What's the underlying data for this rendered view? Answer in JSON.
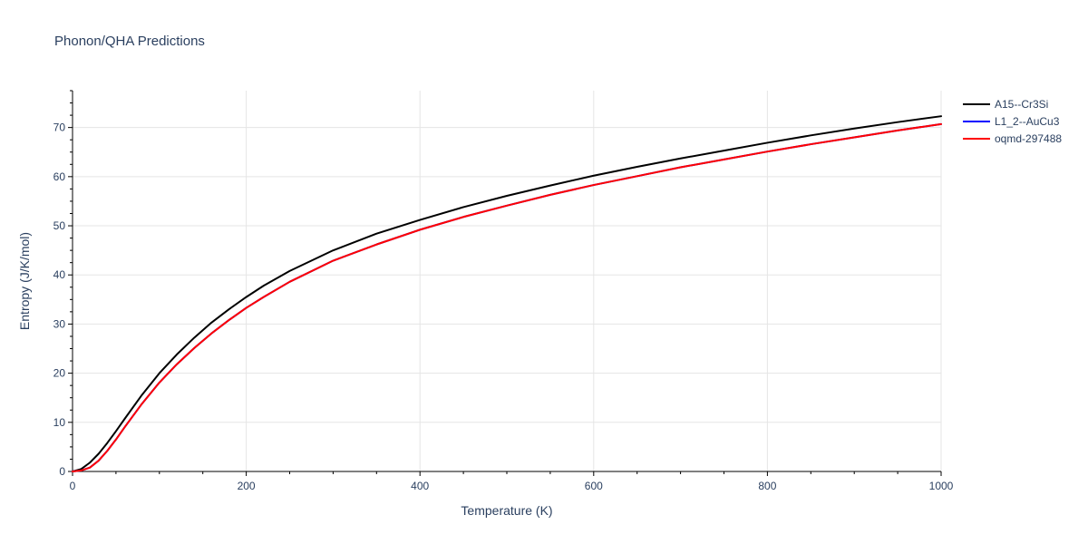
{
  "chart_data": {
    "type": "line",
    "title": "Phonon/QHA Predictions",
    "xlabel": "Temperature (K)",
    "ylabel": "Entropy (J/K/mol)",
    "xlim": [
      0,
      1000
    ],
    "ylim": [
      0,
      77.5
    ],
    "xticks": [
      0,
      200,
      400,
      600,
      800,
      1000
    ],
    "yticks": [
      0,
      10,
      20,
      30,
      40,
      50,
      60,
      70
    ],
    "grid": true,
    "legend_position": "top-right",
    "series": [
      {
        "name": "A15--Cr3Si",
        "color": "#000000",
        "x": [
          0,
          10,
          20,
          30,
          40,
          50,
          60,
          80,
          100,
          120,
          140,
          160,
          180,
          200,
          220,
          250,
          300,
          350,
          400,
          450,
          500,
          550,
          600,
          650,
          700,
          750,
          800,
          850,
          900,
          950,
          1000
        ],
        "y": [
          0,
          0.5,
          1.8,
          3.6,
          5.8,
          8.2,
          10.7,
          15.6,
          20.0,
          23.8,
          27.2,
          30.3,
          33.0,
          35.5,
          37.8,
          40.8,
          45.0,
          48.4,
          51.2,
          53.8,
          56.1,
          58.2,
          60.2,
          62.0,
          63.7,
          65.3,
          66.9,
          68.4,
          69.8,
          71.1,
          72.3
        ]
      },
      {
        "name": "L1_2--AuCu3",
        "color": "#0000ff",
        "x": [
          0,
          10,
          20,
          30,
          40,
          50,
          60,
          80,
          100,
          120,
          140,
          160,
          180,
          200,
          220,
          250,
          300,
          350,
          400,
          450,
          500,
          550,
          600,
          650,
          700,
          750,
          800,
          850,
          900,
          950,
          1000
        ],
        "y": [
          0,
          0.2,
          0.8,
          2.2,
          4.2,
          6.5,
          9.0,
          13.8,
          18.1,
          21.8,
          25.1,
          28.1,
          30.8,
          33.3,
          35.5,
          38.6,
          42.9,
          46.2,
          49.2,
          51.8,
          54.1,
          56.3,
          58.3,
          60.1,
          61.9,
          63.5,
          65.1,
          66.6,
          68.0,
          69.4,
          70.7
        ]
      },
      {
        "name": "oqmd-297488",
        "color": "#ff0000",
        "x": [
          0,
          10,
          20,
          30,
          40,
          50,
          60,
          80,
          100,
          120,
          140,
          160,
          180,
          200,
          220,
          250,
          300,
          350,
          400,
          450,
          500,
          550,
          600,
          650,
          700,
          750,
          800,
          850,
          900,
          950,
          1000
        ],
        "y": [
          0,
          0.2,
          0.8,
          2.2,
          4.2,
          6.5,
          9.0,
          13.8,
          18.1,
          21.8,
          25.1,
          28.1,
          30.8,
          33.3,
          35.5,
          38.6,
          42.9,
          46.2,
          49.2,
          51.8,
          54.1,
          56.3,
          58.3,
          60.1,
          61.9,
          63.5,
          65.1,
          66.6,
          68.0,
          69.4,
          70.7
        ]
      }
    ]
  }
}
